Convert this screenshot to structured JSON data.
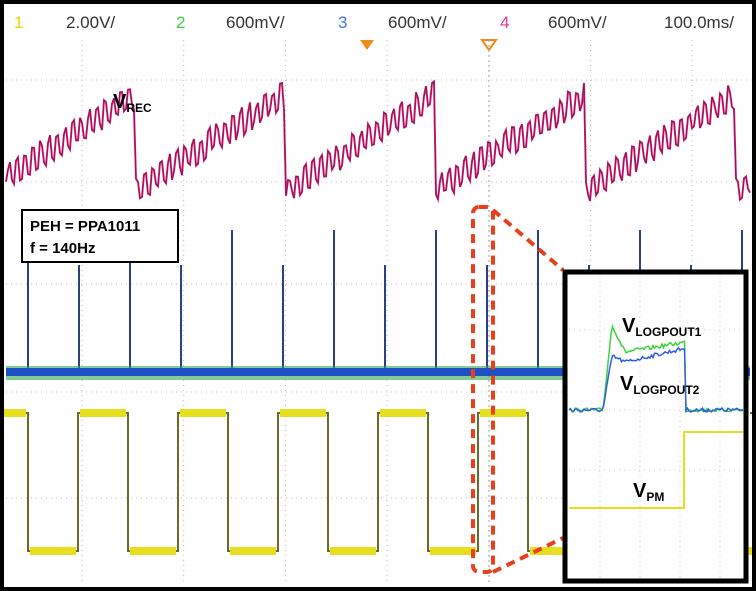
{
  "header": {
    "channels": [
      {
        "number": "1",
        "scale": "2.00V/"
      },
      {
        "number": "2",
        "scale": "600mV/"
      },
      {
        "number": "3",
        "scale": "600mV/"
      },
      {
        "number": "4",
        "scale": "600mV/"
      }
    ],
    "timebase": "100.0ms/"
  },
  "info_box": {
    "lines": [
      "PEH = PPA1011",
      "f = 140Hz"
    ]
  },
  "labels": {
    "v_rec": {
      "symbol": "V",
      "subscript": "REC"
    },
    "v_logpout1": {
      "symbol": "V",
      "subscript": "LOGPOUT1"
    },
    "v_logpout2": {
      "symbol": "V",
      "subscript": "LOGPOUT2"
    },
    "v_pm": {
      "symbol": "V",
      "subscript": "PM"
    }
  }
}
